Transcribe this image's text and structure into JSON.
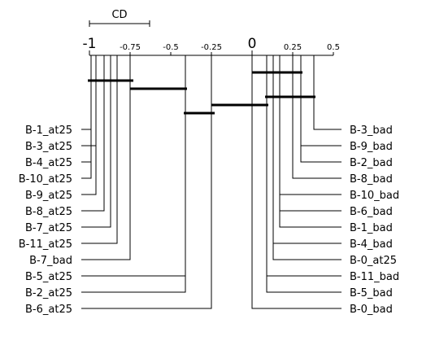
{
  "chart_data": {
    "type": "critical-difference-diagram",
    "cd_label": "CD",
    "cd_value": 0.37,
    "axis": {
      "range": [
        -1,
        0.5
      ],
      "ticks": [
        {
          "value": -1,
          "label": "-1",
          "major": true
        },
        {
          "value": -0.75,
          "label": "-0.75",
          "major": false
        },
        {
          "value": -0.5,
          "label": "-0.5",
          "major": false
        },
        {
          "value": -0.25,
          "label": "-0.25",
          "major": false
        },
        {
          "value": 0,
          "label": "0",
          "major": true
        },
        {
          "value": 0.25,
          "label": "0.25",
          "major": false
        },
        {
          "value": 0.5,
          "label": "0.5",
          "major": false
        }
      ]
    },
    "left_items": [
      {
        "name": "B-1_at25",
        "value": -0.99
      },
      {
        "name": "B-3_at25",
        "value": -0.96
      },
      {
        "name": "B-4_at25",
        "value": -0.99
      },
      {
        "name": "B-10_at25",
        "value": -0.99
      },
      {
        "name": "B-9_at25",
        "value": -0.96
      },
      {
        "name": "B-8_at25",
        "value": -0.91
      },
      {
        "name": "B-7_at25",
        "value": -0.87
      },
      {
        "name": "B-11_at25",
        "value": -0.83
      },
      {
        "name": "B-7_bad",
        "value": -0.75
      },
      {
        "name": "B-5_at25",
        "value": -0.41
      },
      {
        "name": "B-2_at25",
        "value": -0.41
      },
      {
        "name": "B-6_at25",
        "value": -0.25
      }
    ],
    "right_items": [
      {
        "name": "B-3_bad",
        "value": 0.38
      },
      {
        "name": "B-9_bad",
        "value": 0.3
      },
      {
        "name": "B-2_bad",
        "value": 0.3
      },
      {
        "name": "B-8_bad",
        "value": 0.25
      },
      {
        "name": "B-10_bad",
        "value": 0.17
      },
      {
        "name": "B-6_bad",
        "value": 0.17
      },
      {
        "name": "B-1_bad",
        "value": 0.17
      },
      {
        "name": "B-4_bad",
        "value": 0.13
      },
      {
        "name": "B-0_at25",
        "value": 0.13
      },
      {
        "name": "B-11_bad",
        "value": 0.09
      },
      {
        "name": "B-5_bad",
        "value": 0.09
      },
      {
        "name": "B-0_bad",
        "value": 0.0
      }
    ],
    "clique_bars": [
      {
        "from": -1.01,
        "to": -0.73
      },
      {
        "from": -0.75,
        "to": -0.4
      },
      {
        "from": -0.42,
        "to": -0.23
      },
      {
        "from": -0.25,
        "to": 0.1
      },
      {
        "from": 0.0,
        "to": 0.31
      },
      {
        "from": 0.08,
        "to": 0.39
      }
    ]
  }
}
